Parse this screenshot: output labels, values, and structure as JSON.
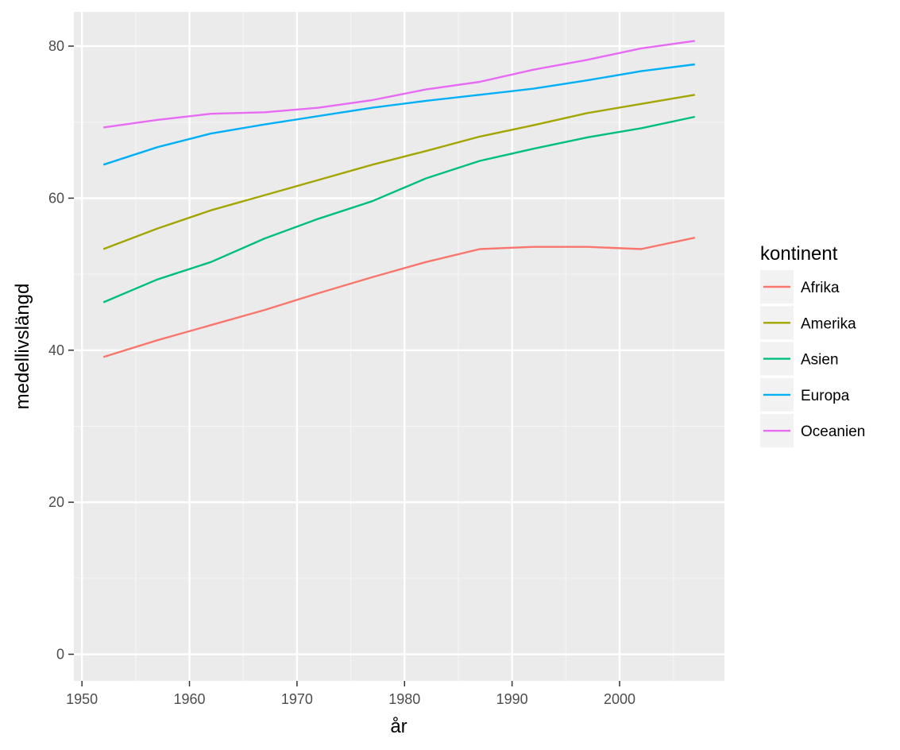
{
  "chart_data": {
    "type": "line",
    "title": "",
    "xlabel": "år",
    "ylabel": "medellivslängd",
    "xlim": [
      1949.25,
      2009.75
    ],
    "ylim": [
      -3.5,
      84.5
    ],
    "x_ticks": [
      1950,
      1960,
      1970,
      1980,
      1990,
      2000
    ],
    "x_minor_ticks": [
      1955,
      1965,
      1975,
      1985,
      1995,
      2005
    ],
    "y_ticks": [
      0,
      20,
      40,
      60,
      80
    ],
    "y_minor_ticks": [
      10,
      30,
      50,
      70
    ],
    "x_tick_labels": [
      "1950",
      "1960",
      "1970",
      "1980",
      "1990",
      "2000"
    ],
    "y_tick_labels": [
      "0",
      "20",
      "40",
      "60",
      "80"
    ],
    "grid": true,
    "legend": {
      "title": "kontinent",
      "placement": "right"
    },
    "x": [
      1952,
      1957,
      1962,
      1967,
      1972,
      1977,
      1982,
      1987,
      1992,
      1997,
      2002,
      2007
    ],
    "series": [
      {
        "name": "Afrika",
        "color": "#F8766D",
        "values": [
          39.1,
          41.3,
          43.3,
          45.3,
          47.5,
          49.6,
          51.6,
          53.3,
          53.6,
          53.6,
          53.3,
          54.8
        ]
      },
      {
        "name": "Amerika",
        "color": "#A3A500",
        "values": [
          53.3,
          56.0,
          58.4,
          60.4,
          62.4,
          64.4,
          66.2,
          68.1,
          69.6,
          71.2,
          72.4,
          73.6
        ]
      },
      {
        "name": "Asien",
        "color": "#00BF7D",
        "values": [
          46.3,
          49.3,
          51.6,
          54.7,
          57.3,
          59.6,
          62.6,
          64.9,
          66.5,
          68.0,
          69.2,
          70.7
        ]
      },
      {
        "name": "Europa",
        "color": "#00B0F6",
        "values": [
          64.4,
          66.7,
          68.5,
          69.7,
          70.8,
          71.9,
          72.8,
          73.6,
          74.4,
          75.5,
          76.7,
          77.6
        ]
      },
      {
        "name": "Oceanien",
        "color": "#E76BF3",
        "values": [
          69.3,
          70.3,
          71.1,
          71.3,
          71.9,
          72.9,
          74.3,
          75.3,
          76.9,
          78.2,
          79.7,
          80.7
        ]
      }
    ]
  }
}
